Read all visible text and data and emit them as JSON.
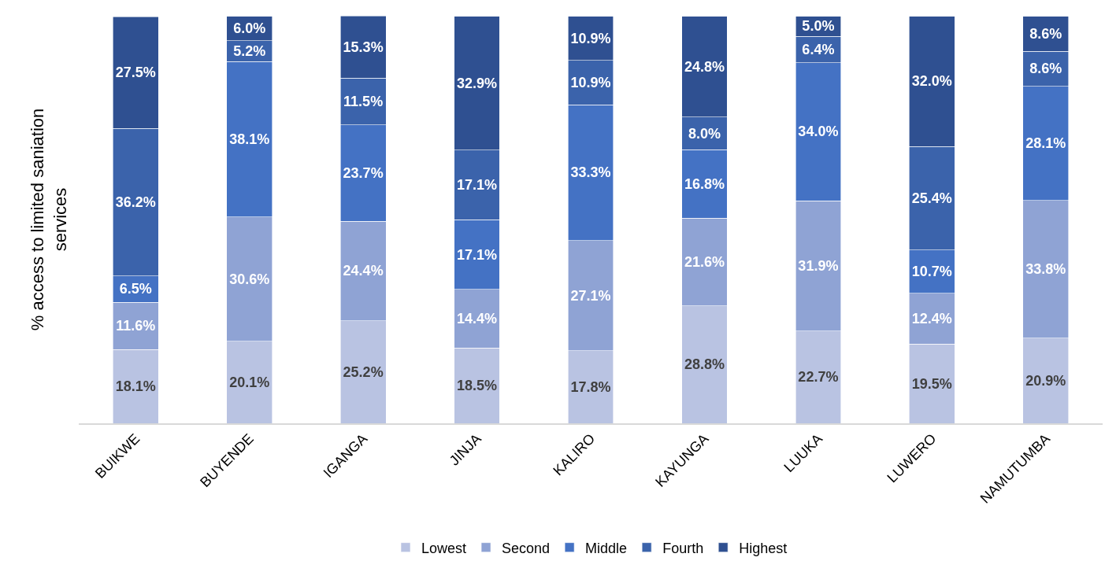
{
  "chart_data": {
    "type": "bar",
    "stacked": true,
    "ylabel": "% access to limited saniation services",
    "categories": [
      "BUIKWE",
      "BUYENDE",
      "IGANGA",
      "JINJA",
      "KALIRO",
      "KAYUNGA",
      "LUUKA",
      "LUWERO",
      "NAMUTUMBA"
    ],
    "series": [
      {
        "name": "Lowest",
        "color": "#b9c3e2",
        "values": [
          18.1,
          20.1,
          25.2,
          18.5,
          17.8,
          28.8,
          22.7,
          19.5,
          20.9
        ],
        "value_labels": [
          "18.1%",
          "20.1%",
          "25.2%",
          "18.5%",
          "17.8%",
          "28.8%",
          "22.7%",
          "19.5%",
          "20.9%"
        ]
      },
      {
        "name": "Second",
        "color": "#8fa3d4",
        "values": [
          11.6,
          30.6,
          24.4,
          14.4,
          27.1,
          21.6,
          31.9,
          12.4,
          33.8
        ],
        "value_labels": [
          "11.6%",
          "30.6%",
          "24.4%",
          "14.4%",
          "27.1%",
          "21.6%",
          "31.9%",
          "12.4%",
          "33.8%"
        ]
      },
      {
        "name": "Middle",
        "color": "#4472c4",
        "values": [
          6.5,
          38.1,
          23.7,
          17.1,
          33.3,
          16.8,
          34.0,
          10.7,
          28.1
        ],
        "value_labels": [
          "6.5%",
          "38.1%",
          "23.7%",
          "17.1%",
          "33.3%",
          "16.8%",
          "34.0%",
          "10.7%",
          "28.1%"
        ]
      },
      {
        "name": "Fourth",
        "color": "#3b63ab",
        "values": [
          36.2,
          5.2,
          11.5,
          17.1,
          10.9,
          8.0,
          6.4,
          25.4,
          8.6
        ],
        "value_labels": [
          "36.2%",
          "5.2%",
          "11.5%",
          "17.1%",
          "10.9%",
          "8.0%",
          "6.4%",
          "25.4%",
          "8.6%"
        ]
      },
      {
        "name": "Highest",
        "color": "#2f5091",
        "values": [
          27.5,
          6.0,
          15.3,
          32.9,
          10.9,
          24.8,
          5.0,
          32.0,
          8.6
        ],
        "value_labels": [
          "27.5%",
          "6.0%",
          "15.3%",
          "32.9%",
          "10.9%",
          "24.8%",
          "5.0%",
          "32.0%",
          "8.6%"
        ]
      }
    ],
    "legend": "bottom",
    "tick_labels": "x"
  }
}
